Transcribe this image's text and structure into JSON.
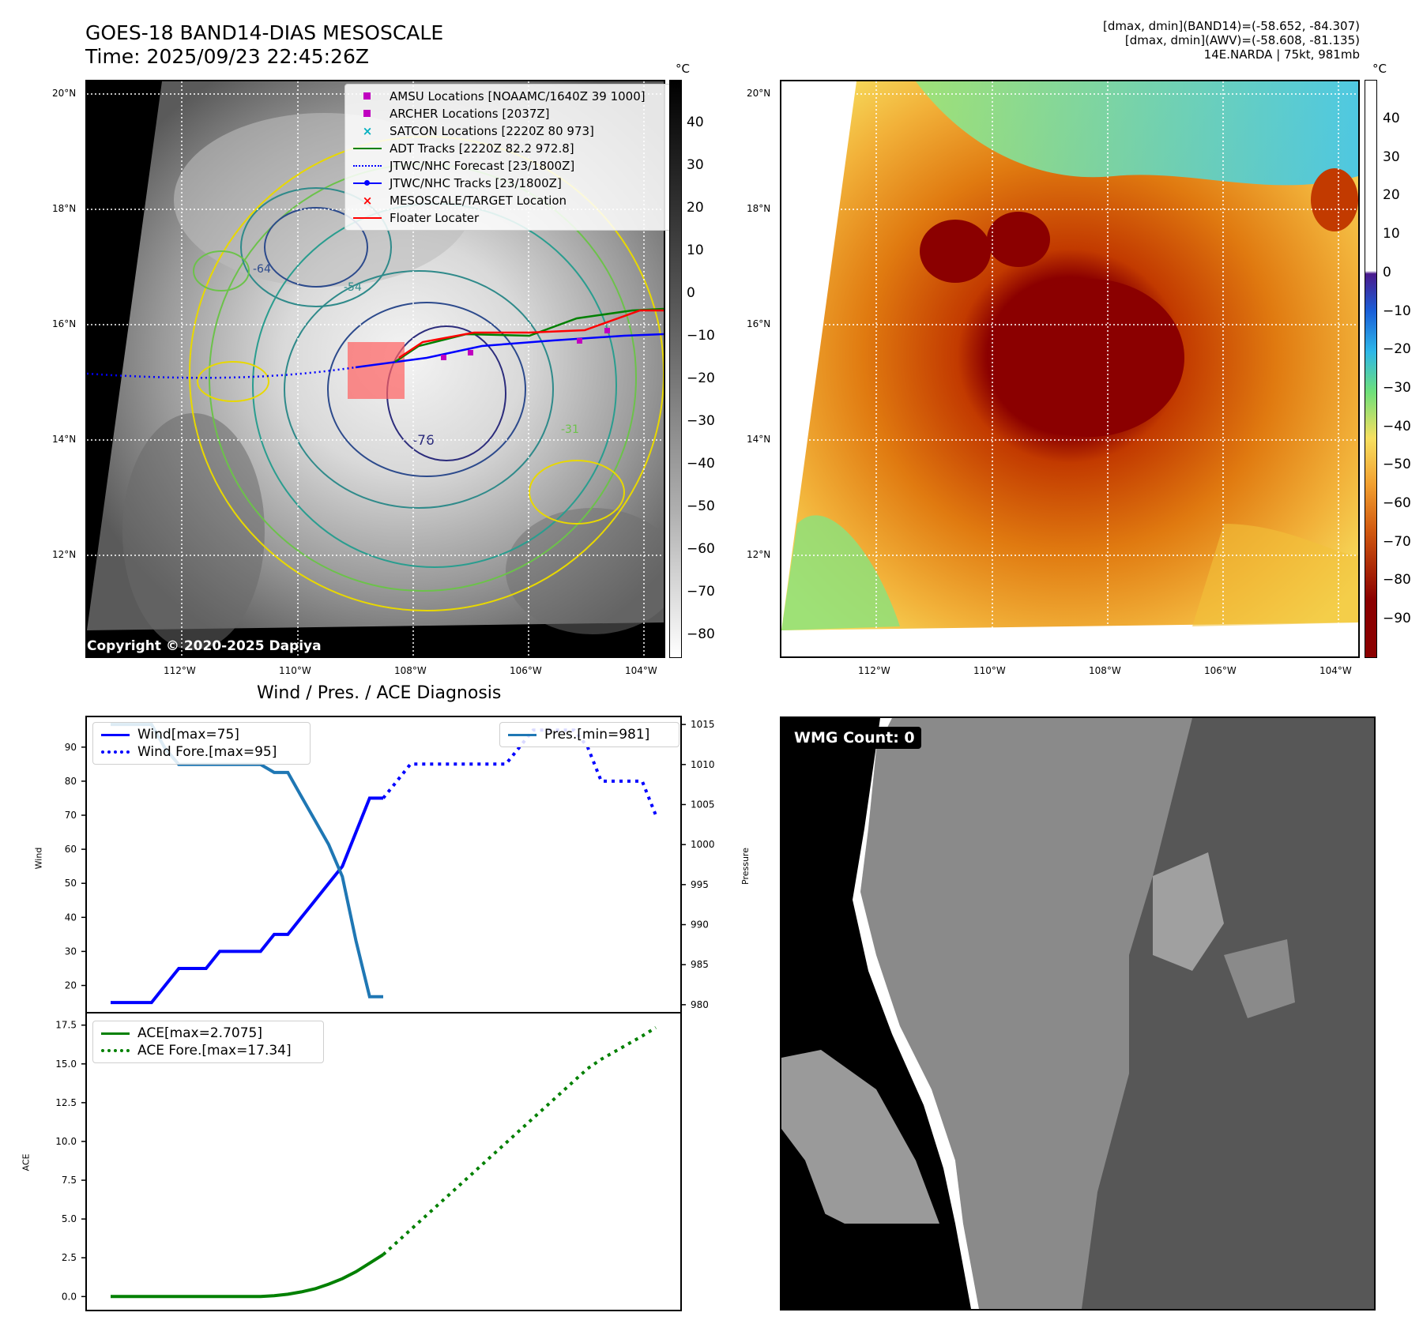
{
  "header": {
    "title_line1": "GOES-18 BAND14-DIAS MESOSCALE",
    "title_line2": "Time: 2025/09/23 22:45:26Z",
    "info_line1": "[dmax, dmin](BAND14)=(-58.652, -84.307)",
    "info_line2": "[dmax, dmin](AWV)=(-58.608, -81.135)",
    "info_line3": "14E.NARDA | 75kt, 981mb"
  },
  "map": {
    "lat_labels": [
      "20°N",
      "18°N",
      "16°N",
      "14°N",
      "12°N"
    ],
    "lon_labels": [
      "112°W",
      "110°W",
      "108°W",
      "106°W",
      "104°W"
    ],
    "contour_labels": [
      "-76",
      "-64",
      "-54",
      "-31"
    ],
    "copyright": "Copyright © 2020-2025 Dapiya",
    "colorbar_unit": "°C",
    "left_colorbar_ticks": [
      "40",
      "30",
      "20",
      "10",
      "0",
      "−10",
      "−20",
      "−30",
      "−40",
      "−50",
      "−60",
      "−70",
      "−80"
    ],
    "right_colorbar_ticks": [
      "40",
      "30",
      "20",
      "10",
      "0",
      "−10",
      "−20",
      "−30",
      "−40",
      "−50",
      "−60",
      "−70",
      "−80",
      "−90"
    ],
    "legend": [
      {
        "label": "AMSU Locations [NOAAMC/1640Z 39 1000]",
        "color": "#c000c0",
        "symbol": "square"
      },
      {
        "label": "ARCHER Locations [2037Z]",
        "color": "#c000c0",
        "symbol": "square"
      },
      {
        "label": "SATCON Locations [2220Z 80 973]",
        "color": "#00b0c0",
        "symbol": "x"
      },
      {
        "label": "ADT Tracks [2220Z 82.2 972.8]",
        "color": "#008000",
        "symbol": "line"
      },
      {
        "label": "JTWC/NHC Forecast [23/1800Z]",
        "color": "#0000ff",
        "symbol": "dotted"
      },
      {
        "label": "JTWC/NHC Tracks [23/1800Z]",
        "color": "#0000ff",
        "symbol": "line-dot"
      },
      {
        "label": "MESOSCALE/TARGET Location",
        "color": "#ff0000",
        "symbol": "x"
      },
      {
        "label": "Floater Locater",
        "color": "#ff0000",
        "symbol": "line"
      }
    ]
  },
  "diagnosis": {
    "title": "Wind / Pres. / ACE Diagnosis",
    "wind_ylabel": "Wind",
    "pressure_ylabel": "Pressure",
    "ace_ylabel": "ACE",
    "wind_ticks": [
      "20",
      "30",
      "40",
      "50",
      "60",
      "70",
      "80",
      "90"
    ],
    "pressure_ticks": [
      "980",
      "985",
      "990",
      "995",
      "1000",
      "1005",
      "1010",
      "1015"
    ],
    "ace_ticks": [
      "0.0",
      "2.5",
      "5.0",
      "7.5",
      "10.0",
      "12.5",
      "15.0",
      "17.5"
    ],
    "legend_wind": "Wind[max=75]",
    "legend_wind_fore": "Wind Fore.[max=95]",
    "legend_pres": "Pres.[min=981]",
    "legend_ace": "ACE[max=2.7075]",
    "legend_ace_fore": "ACE Fore.[max=17.34]",
    "wmg_label": "WMG Count: 0"
  },
  "chart_data": [
    {
      "type": "line",
      "title": "Wind / Pres. / ACE Diagnosis",
      "ylabel": "Wind",
      "ylim": [
        12,
        99
      ],
      "x": [
        0,
        1,
        2,
        3,
        4,
        5,
        6,
        7,
        8,
        9,
        10,
        11,
        12,
        13,
        14,
        15,
        16,
        17,
        18,
        19,
        20,
        21,
        22,
        23,
        24,
        25,
        26,
        27,
        28,
        29,
        30,
        31,
        32,
        33,
        34,
        35,
        36,
        37,
        38,
        39,
        40
      ],
      "series": [
        {
          "name": "Wind[max=75]",
          "color": "#0000ff",
          "style": "solid",
          "x": [
            0,
            1,
            2,
            3,
            4,
            5,
            6,
            7,
            8,
            9,
            10,
            11,
            12,
            13,
            14,
            15,
            16,
            17,
            18,
            19,
            20
          ],
          "values": [
            15,
            15,
            15,
            15,
            20,
            25,
            25,
            25,
            30,
            30,
            30,
            30,
            35,
            35,
            40,
            45,
            50,
            55,
            65,
            75,
            75
          ]
        },
        {
          "name": "Wind Fore.[max=95]",
          "color": "#0000ff",
          "style": "dotted",
          "x": [
            20,
            21,
            22,
            23,
            24,
            25,
            26,
            27,
            28,
            29,
            30,
            31,
            32,
            33,
            34,
            35,
            36,
            37,
            38,
            39,
            40
          ],
          "values": [
            75,
            80,
            85,
            85,
            85,
            85,
            85,
            85,
            85,
            85,
            90,
            95,
            95,
            95,
            95,
            90,
            80,
            80,
            80,
            80,
            70
          ]
        }
      ]
    },
    {
      "type": "line",
      "ylabel": "Pressure",
      "ylim": [
        979,
        1016
      ],
      "series": [
        {
          "name": "Pres.[min=981]",
          "color": "#1f77b4",
          "style": "solid",
          "x": [
            0,
            1,
            2,
            3,
            4,
            5,
            6,
            7,
            8,
            9,
            10,
            11,
            12,
            13,
            14,
            15,
            16,
            17,
            18,
            19,
            20
          ],
          "values": [
            1015,
            1015,
            1015,
            1015,
            1012,
            1010,
            1010,
            1010,
            1010,
            1010,
            1010,
            1010,
            1009,
            1009,
            1006,
            1003,
            1000,
            996,
            988,
            981,
            981
          ]
        }
      ]
    },
    {
      "type": "line",
      "ylabel": "ACE",
      "ylim": [
        -0.9,
        18.3
      ],
      "series": [
        {
          "name": "ACE[max=2.7075]",
          "color": "#008000",
          "style": "solid",
          "x": [
            0,
            1,
            2,
            3,
            4,
            5,
            6,
            7,
            8,
            9,
            10,
            11,
            12,
            13,
            14,
            15,
            16,
            17,
            18,
            19,
            20
          ],
          "values": [
            0,
            0,
            0,
            0,
            0,
            0,
            0,
            0,
            0,
            0,
            0,
            0,
            0.05,
            0.15,
            0.3,
            0.5,
            0.8,
            1.15,
            1.6,
            2.15,
            2.7075
          ]
        },
        {
          "name": "ACE Fore.[max=17.34]",
          "color": "#008000",
          "style": "dotted",
          "x": [
            20,
            21,
            22,
            23,
            24,
            25,
            26,
            27,
            28,
            29,
            30,
            31,
            32,
            33,
            34,
            35,
            36,
            37,
            38,
            39,
            40
          ],
          "values": [
            2.7075,
            3.5,
            4.3,
            5.1,
            5.9,
            6.7,
            7.5,
            8.3,
            9.1,
            9.9,
            10.7,
            11.5,
            12.3,
            13.1,
            13.9,
            14.7,
            15.3,
            15.8,
            16.3,
            16.8,
            17.34
          ]
        }
      ]
    }
  ]
}
